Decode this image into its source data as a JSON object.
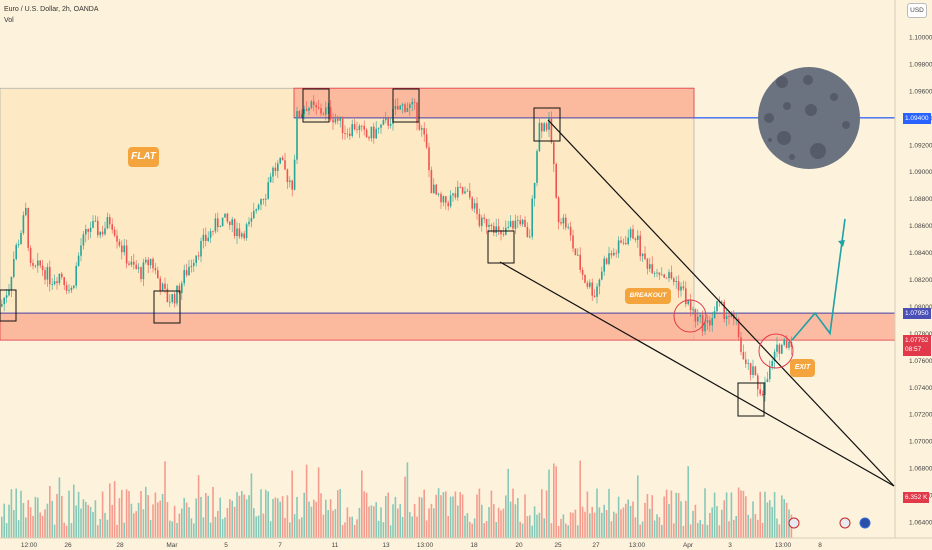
{
  "header": {
    "symbol_line": "Euro / U.S. Dollar, 2h, OANDA",
    "vol_label": "Vol"
  },
  "currency_button": "USD",
  "price_tags": {
    "resistance": "1.09400",
    "support": "1.07950",
    "current_price": "1.07752",
    "countdown": "08:57",
    "volume": "6.352 K"
  },
  "annotations": {
    "flat": "FLAT",
    "breakout": "BREAKOUT",
    "exit": "EXIT"
  },
  "colors": {
    "background": "#fdf3dc",
    "zone_fill": "#f9aa90",
    "zone_border": "#e2394a",
    "level_line": "#4a50b5",
    "resistance_line": "#2962ff",
    "candle_up": "#26a69a",
    "candle_down": "#ef5350",
    "label_bg": "#f4a43c",
    "moon": "#6b7280"
  },
  "chart_data": {
    "type": "candlestick",
    "y_axis": {
      "range": [
        1.064,
        1.1015
      ],
      "ticks": [
        "1.10000",
        "1.09800",
        "1.09600",
        "1.09400",
        "1.09200",
        "1.09000",
        "1.08800",
        "1.08600",
        "1.08400",
        "1.08200",
        "1.08000",
        "1.07800",
        "1.07600",
        "1.07400",
        "1.07200",
        "1.07000",
        "1.06800",
        "1.06600",
        "1.06400"
      ]
    },
    "x_axis": {
      "ticks": [
        "12:00",
        "26",
        "28",
        "Mar",
        "5",
        "7",
        "11",
        "13",
        "13:00",
        "18",
        "20",
        "25",
        "27",
        "13:00",
        "Apr",
        "3",
        "13:00",
        "8"
      ]
    },
    "levels": {
      "flat_range": [
        1.0775,
        1.0962
      ],
      "resistance_zone": [
        1.094,
        1.0962
      ],
      "support_zone": [
        1.0775,
        1.0795
      ],
      "resistance_line": 1.094,
      "support_line": 1.0795
    },
    "price_path": [
      [
        0,
        1.08
      ],
      [
        8,
        1.0815
      ],
      [
        14,
        1.084
      ],
      [
        18,
        1.085
      ],
      [
        25,
        1.087
      ],
      [
        30,
        1.0825
      ],
      [
        40,
        1.083
      ],
      [
        50,
        1.082
      ],
      [
        60,
        1.0825
      ],
      [
        70,
        1.081
      ],
      [
        80,
        1.0845
      ],
      [
        90,
        1.086
      ],
      [
        100,
        1.0855
      ],
      [
        110,
        1.0865
      ],
      [
        120,
        1.0845
      ],
      [
        130,
        1.083
      ],
      [
        140,
        1.0825
      ],
      [
        150,
        1.0835
      ],
      [
        160,
        1.0815
      ],
      [
        167,
        1.0805
      ],
      [
        175,
        1.0808
      ],
      [
        185,
        1.0825
      ],
      [
        195,
        1.084
      ],
      [
        210,
        1.0855
      ],
      [
        220,
        1.0865
      ],
      [
        230,
        1.086
      ],
      [
        240,
        1.0855
      ],
      [
        250,
        1.086
      ],
      [
        258,
        1.088
      ],
      [
        265,
        1.0885
      ],
      [
        270,
        1.09
      ],
      [
        280,
        1.0905
      ],
      [
        292,
        1.089
      ],
      [
        296,
        1.094
      ],
      [
        305,
        1.095
      ],
      [
        315,
        1.0945
      ],
      [
        325,
        1.0945
      ],
      [
        335,
        1.094
      ],
      [
        345,
        1.093
      ],
      [
        355,
        1.0935
      ],
      [
        365,
        1.0925
      ],
      [
        375,
        1.093
      ],
      [
        385,
        1.0935
      ],
      [
        395,
        1.0945
      ],
      [
        405,
        1.095
      ],
      [
        415,
        1.0945
      ],
      [
        425,
        1.092
      ],
      [
        430,
        1.089
      ],
      [
        440,
        1.0875
      ],
      [
        450,
        1.088
      ],
      [
        460,
        1.0885
      ],
      [
        470,
        1.088
      ],
      [
        480,
        1.086
      ],
      [
        490,
        1.0865
      ],
      [
        500,
        1.085
      ],
      [
        510,
        1.086
      ],
      [
        520,
        1.0865
      ],
      [
        528,
        1.0845
      ],
      [
        538,
        1.0935
      ],
      [
        548,
        1.0935
      ],
      [
        552,
        1.0915
      ],
      [
        556,
        1.087
      ],
      [
        566,
        1.086
      ],
      [
        574,
        1.084
      ],
      [
        584,
        1.082
      ],
      [
        594,
        1.081
      ],
      [
        604,
        1.0835
      ],
      [
        614,
        1.084
      ],
      [
        624,
        1.085
      ],
      [
        634,
        1.0855
      ],
      [
        642,
        1.0835
      ],
      [
        652,
        1.083
      ],
      [
        662,
        1.0825
      ],
      [
        672,
        1.082
      ],
      [
        680,
        1.0815
      ],
      [
        688,
        1.08
      ],
      [
        696,
        1.079
      ],
      [
        706,
        1.0785
      ],
      [
        716,
        1.08
      ],
      [
        726,
        1.0795
      ],
      [
        736,
        1.0785
      ],
      [
        744,
        1.0755
      ],
      [
        752,
        1.075
      ],
      [
        758,
        1.0738
      ],
      [
        764,
        1.074
      ],
      [
        770,
        1.0755
      ],
      [
        778,
        1.077
      ],
      [
        786,
        1.0775
      ],
      [
        792,
        1.0775
      ]
    ],
    "projection": [
      [
        792,
        1.0775
      ],
      [
        815,
        1.0795
      ],
      [
        830,
        1.078
      ],
      [
        845,
        1.0865
      ]
    ]
  }
}
